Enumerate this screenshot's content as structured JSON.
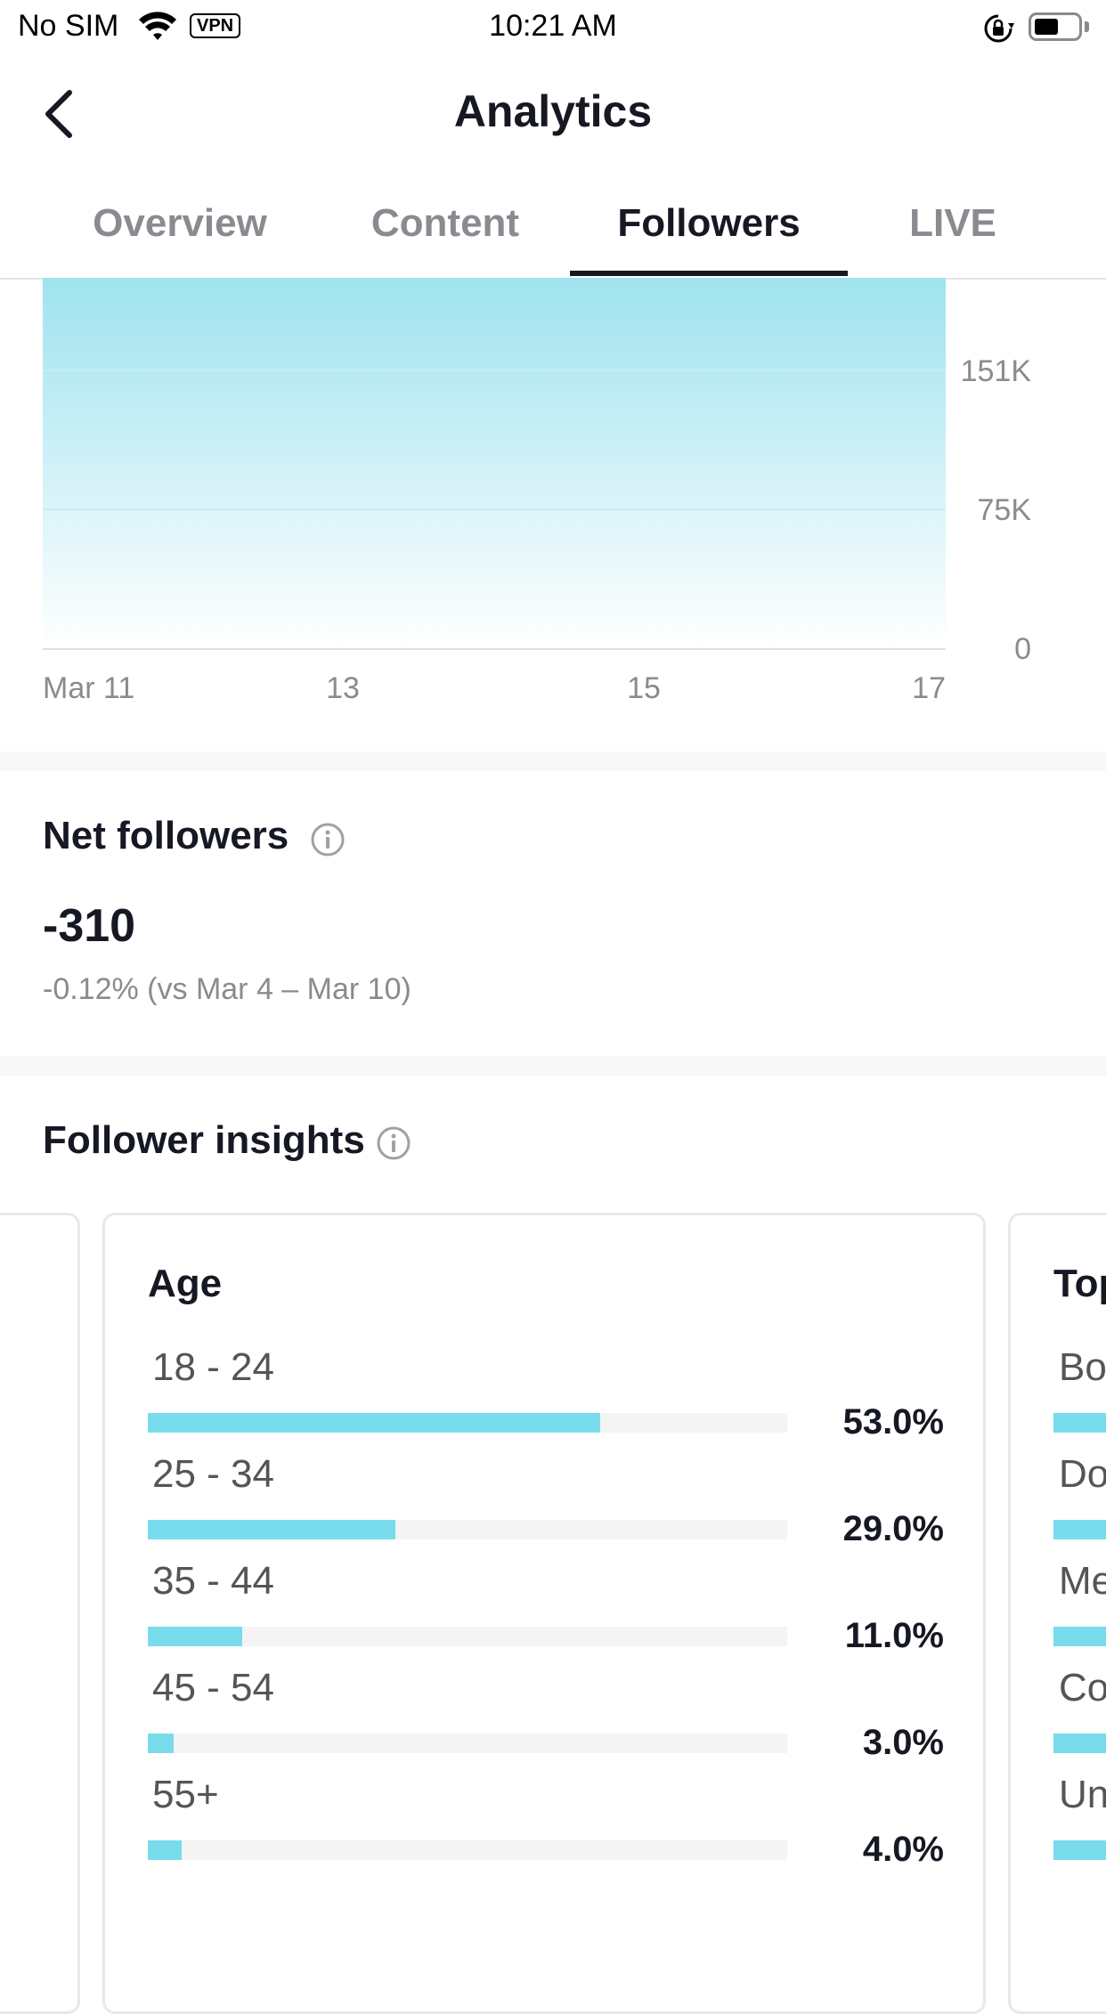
{
  "status_bar": {
    "carrier": "No SIM",
    "vpn": "VPN",
    "time": "10:21 AM"
  },
  "header": {
    "title": "Analytics"
  },
  "tabs": [
    {
      "label": "Overview",
      "active": false
    },
    {
      "label": "Content",
      "active": false
    },
    {
      "label": "Followers",
      "active": true
    },
    {
      "label": "LIVE",
      "active": false
    }
  ],
  "chart_data": {
    "type": "area",
    "x": [
      "Mar 11",
      "13",
      "15",
      "17"
    ],
    "y_ticks": [
      "151K",
      "75K",
      "0"
    ],
    "color": "#a0e4f0"
  },
  "net_followers": {
    "title": "Net followers",
    "value": "-310",
    "change": "-0.12% (vs Mar 4 – Mar 10)"
  },
  "follower_insights": {
    "title": "Follower insights",
    "age_card": {
      "title": "Age",
      "rows": [
        {
          "label": "18 - 24",
          "pct_text": "53.0%",
          "pct": 53.0
        },
        {
          "label": "25 - 34",
          "pct_text": "29.0%",
          "pct": 29.0
        },
        {
          "label": "35 - 44",
          "pct_text": "11.0%",
          "pct": 11.0
        },
        {
          "label": "45 - 54",
          "pct_text": "3.0%",
          "pct": 3.0
        },
        {
          "label": "55+",
          "pct_text": "4.0%",
          "pct": 4.0
        }
      ]
    },
    "next_card": {
      "title_partial": "Top",
      "rows_partial": [
        "Bo",
        "Do",
        "Me",
        "Co",
        "Un"
      ]
    }
  },
  "colors": {
    "accent": "#78dced",
    "text": "#161823",
    "muted": "#8a8b91"
  }
}
